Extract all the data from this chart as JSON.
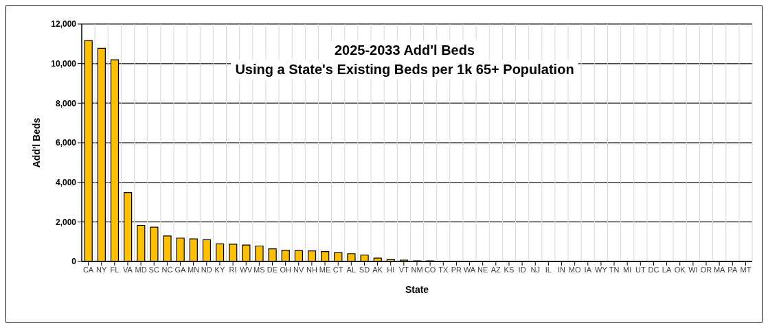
{
  "chart_data": {
    "type": "bar",
    "title": "2025-2033 Add'l Beds",
    "subtitle": "Using a State's Existing Beds per 1k 65+ Population",
    "xlabel": "State",
    "ylabel": "Add'l Beds",
    "categories": [
      "CA",
      "NY",
      "FL",
      "VA",
      "MD",
      "SC",
      "NC",
      "GA",
      "MN",
      "ND",
      "KY",
      "RI",
      "WV",
      "MS",
      "DE",
      "OH",
      "NV",
      "NH",
      "ME",
      "CT",
      "AL",
      "SD",
      "AK",
      "HI",
      "VT",
      "NM",
      "CO",
      "TX",
      "PR",
      "WA",
      "NE",
      "AZ",
      "KS",
      "ID",
      "NJ",
      "IL",
      "IN",
      "MO",
      "IA",
      "WY",
      "TN",
      "MI",
      "UT",
      "DC",
      "LA",
      "OK",
      "WI",
      "OR",
      "MA",
      "PA",
      "MT"
    ],
    "values": [
      11160,
      10770,
      10190,
      3480,
      1820,
      1730,
      1290,
      1180,
      1140,
      1100,
      890,
      870,
      830,
      780,
      640,
      570,
      550,
      530,
      500,
      450,
      390,
      320,
      170,
      90,
      70,
      30,
      30,
      0,
      0,
      0,
      0,
      0,
      0,
      0,
      0,
      0,
      0,
      0,
      0,
      0,
      0,
      0,
      0,
      0,
      0,
      0,
      0,
      0,
      0,
      0,
      0
    ],
    "color": "#ffc000",
    "ylim": [
      0,
      12000
    ],
    "yticks": [
      0,
      {
        "value": 2000,
        "label": "2,000"
      },
      {
        "value": 4000,
        "label": "4,000"
      },
      {
        "value": 6000,
        "label": "6,000"
      },
      {
        "value": 8000,
        "label": "8,000"
      },
      {
        "value": 10000,
        "label": "10,000"
      },
      {
        "value": 12000,
        "label": "12,000"
      }
    ],
    "grid": true,
    "legend": false
  }
}
